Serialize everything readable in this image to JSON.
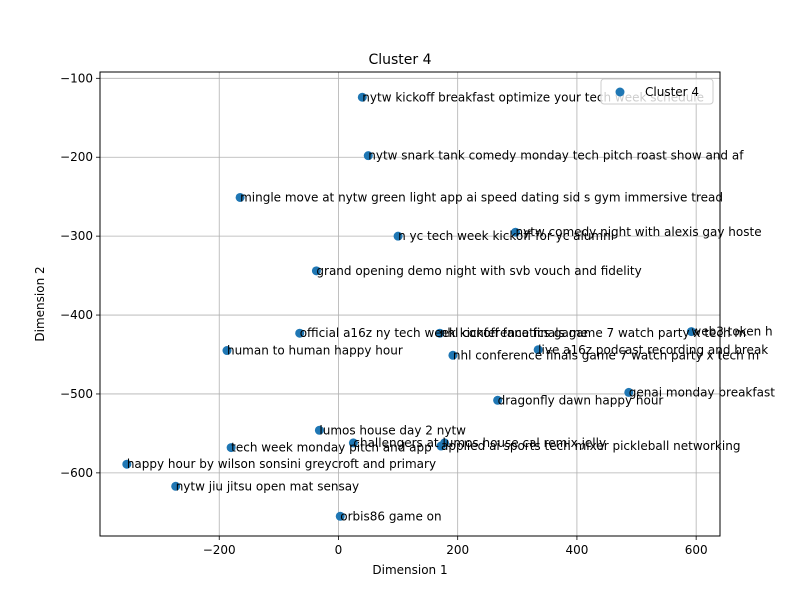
{
  "chart_data": {
    "type": "scatter",
    "title": "Cluster 4",
    "xlabel": "Dimension 1",
    "ylabel": "Dimension 2",
    "xlim": [
      -400,
      640
    ],
    "ylim": [
      -680,
      -92
    ],
    "xticks": [
      -200,
      0,
      200,
      400,
      600
    ],
    "yticks": [
      -100,
      -200,
      -300,
      -400,
      -500,
      -600
    ],
    "xtick_labels": [
      "−200",
      "0",
      "200",
      "400",
      "600"
    ],
    "ytick_labels": [
      "−100",
      "−200",
      "−300",
      "−400",
      "−500",
      "−600"
    ],
    "grid": true,
    "legend": {
      "placement": "top-right",
      "entries": [
        "Cluster 4"
      ]
    },
    "series": [
      {
        "name": "Cluster 4",
        "color": "#1f77b4",
        "points": [
          {
            "x": 40,
            "y": -124,
            "label": "nytw kickoff breakfast optimize your tech week schedule"
          },
          {
            "x": 50,
            "y": -198,
            "label": "nytw snark tank comedy monday tech pitch roast show and af"
          },
          {
            "x": -165,
            "y": -251,
            "label": "mingle move at nytw green light app ai speed dating sid s gym immersive tread"
          },
          {
            "x": 100,
            "y": -300,
            "label": "n yc tech week kickoff for yc alumni"
          },
          {
            "x": 297,
            "y": -295,
            "label": "nytw comedy night with alexis gay hoste"
          },
          {
            "x": -37,
            "y": -344,
            "label": "grand opening demo night with svb vouch and fidelity"
          },
          {
            "x": -65,
            "y": -423,
            "label": "official a16z ny tech week kickoff fanatics game"
          },
          {
            "x": 170,
            "y": -423,
            "label": "nhl conference finals game 7 watch party x tech m"
          },
          {
            "x": 592,
            "y": -421,
            "label": "web3 token h"
          },
          {
            "x": -187,
            "y": -445,
            "label": "human to human happy hour"
          },
          {
            "x": 335,
            "y": -444,
            "label": "live a16z podcast recording and break"
          },
          {
            "x": 192,
            "y": -451,
            "label": "nhl conference finals game 7 watch party x tech m"
          },
          {
            "x": 487,
            "y": -498,
            "label": "genai monday breakfast"
          },
          {
            "x": 267,
            "y": -508,
            "label": "dragonfly dawn happy hour"
          },
          {
            "x": -32,
            "y": -546,
            "label": "lumos house day 2 nytw"
          },
          {
            "x": 25,
            "y": -562,
            "label": "challengers at lumos house cal remix jelly"
          },
          {
            "x": 172,
            "y": -566,
            "label": "applied ai sports tech mixer pickleball networking"
          },
          {
            "x": 178,
            "y": -562,
            "label": ""
          },
          {
            "x": -180,
            "y": -568,
            "label": "tech week monday pitch and app"
          },
          {
            "x": -355,
            "y": -589,
            "label": "happy hour by wilson sonsini greycroft and primary"
          },
          {
            "x": -273,
            "y": -617,
            "label": "nytw jiu jitsu open mat sensay"
          },
          {
            "x": 3,
            "y": -655,
            "label": "orbis86 game on"
          }
        ]
      }
    ]
  }
}
